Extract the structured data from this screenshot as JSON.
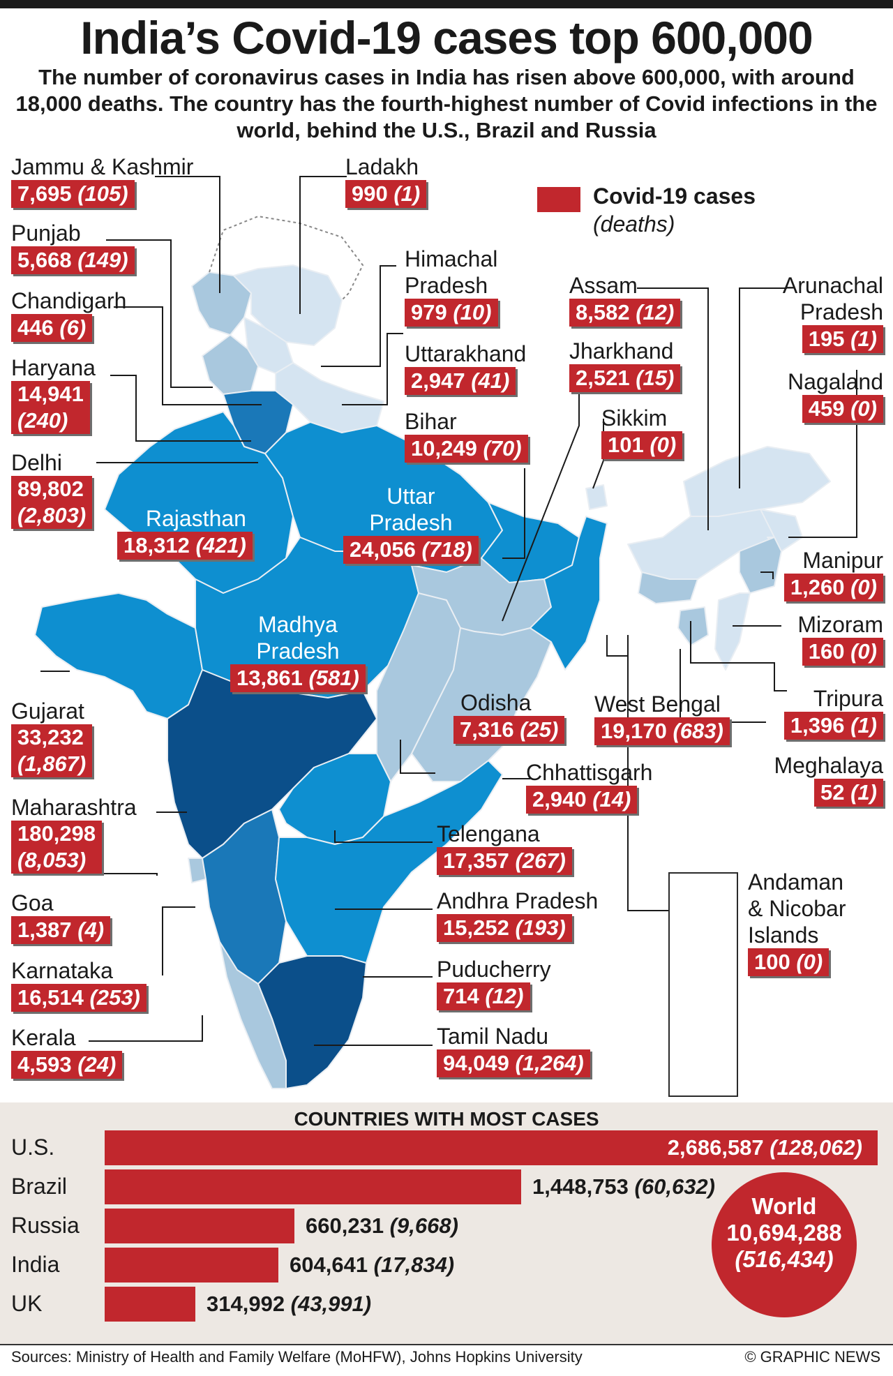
{
  "header": {
    "title": "India’s Covid-19 cases top 600,000",
    "subtitle": "The number of coronavirus cases in India has risen above 600,000, with around 18,000 deaths. The country has the fourth-highest number of Covid infections in the world, behind the U.S., Brazil and Russia"
  },
  "legend": {
    "title": "Covid-19 cases",
    "sub": "(deaths)",
    "color": "#c1272d"
  },
  "colors": {
    "darkest": "#0b4f8a",
    "dark": "#1a78b8",
    "mid": "#0e8fd0",
    "light": "#a9c8de",
    "lightest": "#d5e4f1",
    "label": "#c1272d"
  },
  "states": {
    "jammu_kashmir": {
      "name": "Jammu & Kashmir",
      "cases": "7,695",
      "deaths": "(105)"
    },
    "ladakh": {
      "name": "Ladakh",
      "cases": "990",
      "deaths": "(1)"
    },
    "punjab": {
      "name": "Punjab",
      "cases": "5,668",
      "deaths": "(149)"
    },
    "himachal": {
      "name1": "Himachal",
      "name2": "Pradesh",
      "cases": "979",
      "deaths": "(10)"
    },
    "chandigarh": {
      "name": "Chandigarh",
      "cases": "446",
      "deaths": "(6)"
    },
    "uttarakhand": {
      "name": "Uttarakhand",
      "cases": "2,947",
      "deaths": "(41)"
    },
    "haryana": {
      "name": "Haryana",
      "cases": "14,941",
      "deaths": "(240)"
    },
    "bihar": {
      "name": "Bihar",
      "cases": "10,249",
      "deaths": "(70)"
    },
    "delhi": {
      "name": "Delhi",
      "cases": "89,802",
      "deaths": "(2,803)"
    },
    "rajasthan": {
      "name": "Rajasthan",
      "cases": "18,312",
      "deaths": "(421)"
    },
    "uttar_pradesh": {
      "name1": "Uttar",
      "name2": "Pradesh",
      "cases": "24,056",
      "deaths": "(718)"
    },
    "madhya_pradesh": {
      "name1": "Madhya",
      "name2": "Pradesh",
      "cases": "13,861",
      "deaths": "(581)"
    },
    "gujarat": {
      "name": "Gujarat",
      "cases": "33,232",
      "deaths": "(1,867)"
    },
    "maharashtra": {
      "name": "Maharashtra",
      "cases": "180,298",
      "deaths": "(8,053)"
    },
    "goa": {
      "name": "Goa",
      "cases": "1,387",
      "deaths": "(4)"
    },
    "karnataka": {
      "name": "Karnataka",
      "cases": "16,514",
      "deaths": "(253)"
    },
    "kerala": {
      "name": "Kerala",
      "cases": "4,593",
      "deaths": "(24)"
    },
    "assam": {
      "name": "Assam",
      "cases": "8,582",
      "deaths": "(12)"
    },
    "jharkhand": {
      "name": "Jharkhand",
      "cases": "2,521",
      "deaths": "(15)"
    },
    "sikkim": {
      "name": "Sikkim",
      "cases": "101",
      "deaths": "(0)"
    },
    "arunachal": {
      "name1": "Arunachal",
      "name2": "Pradesh",
      "cases": "195",
      "deaths": "(1)"
    },
    "nagaland": {
      "name": "Nagaland",
      "cases": "459",
      "deaths": "(0)"
    },
    "manipur": {
      "name": "Manipur",
      "cases": "1,260",
      "deaths": "(0)"
    },
    "mizoram": {
      "name": "Mizoram",
      "cases": "160",
      "deaths": "(0)"
    },
    "tripura": {
      "name": "Tripura",
      "cases": "1,396",
      "deaths": "(1)"
    },
    "meghalaya": {
      "name": "Meghalaya",
      "cases": "52",
      "deaths": "(1)"
    },
    "odisha": {
      "name": "Odisha",
      "cases": "7,316",
      "deaths": "(25)"
    },
    "west_bengal": {
      "name": "West Bengal",
      "cases": "19,170",
      "deaths": "(683)"
    },
    "chhattisgarh": {
      "name": "Chhattisgarh",
      "cases": "2,940",
      "deaths": "(14)"
    },
    "telengana": {
      "name": "Telengana",
      "cases": "17,357",
      "deaths": "(267)"
    },
    "andhra_pradesh": {
      "name": "Andhra Pradesh",
      "cases": "15,252",
      "deaths": "(193)"
    },
    "puducherry": {
      "name": "Puducherry",
      "cases": "714",
      "deaths": "(12)"
    },
    "tamil_nadu": {
      "name": "Tamil Nadu",
      "cases": "94,049",
      "deaths": "(1,264)"
    },
    "andaman": {
      "name1": "Andaman",
      "name2": "& Nicobar",
      "name3": "Islands",
      "cases": "100",
      "deaths": "(0)"
    }
  },
  "chart_data": {
    "type": "bar",
    "title": "COUNTRIES WITH MOST CASES",
    "orientation": "horizontal",
    "categories": [
      "U.S.",
      "Brazil",
      "Russia",
      "India",
      "UK"
    ],
    "values": [
      2686587,
      1448753,
      660231,
      604641,
      314992
    ],
    "deaths": [
      128062,
      60632,
      9668,
      17834,
      43991
    ],
    "value_labels": [
      "2,686,587",
      "1,448,753",
      "660,231",
      "604,641",
      "314,992"
    ],
    "death_labels": [
      "(128,062)",
      "(60,632)",
      "(9,668)",
      "(17,834)",
      "(43,991)"
    ],
    "xlim": [
      0,
      2686587
    ],
    "grid": false,
    "bar_color": "#c1272d"
  },
  "world": {
    "label": "World",
    "cases": "10,694,288",
    "deaths": "(516,434)"
  },
  "footer": {
    "sources": "Sources: Ministry of Health and Family Welfare (MoHFW), Johns Hopkins University",
    "credit": "© GRAPHIC NEWS"
  }
}
